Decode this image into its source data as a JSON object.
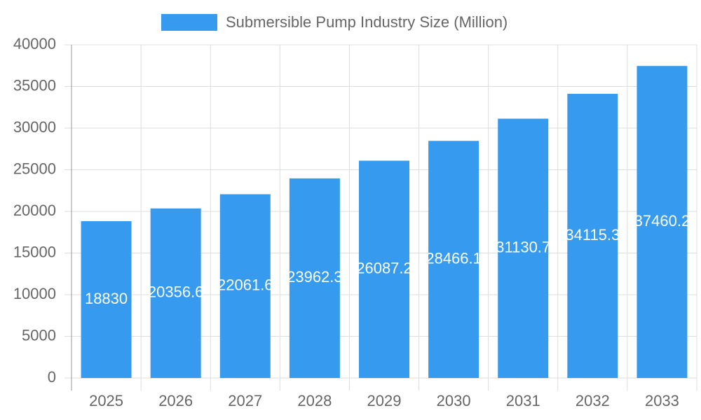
{
  "chart_data": {
    "type": "bar",
    "series": [
      {
        "name": "Submersible Pump Industry Size (Million)",
        "color": "#369bef",
        "values": [
          18830,
          20356.6,
          22061.6,
          23962.3,
          26087.2,
          28466.1,
          31130.7,
          34115.3,
          37460.2
        ]
      }
    ],
    "categories": [
      "2025",
      "2026",
      "2027",
      "2028",
      "2029",
      "2030",
      "2031",
      "2032",
      "2033"
    ],
    "ylim": [
      0,
      40000
    ],
    "yticks": [
      0,
      5000,
      10000,
      15000,
      20000,
      25000,
      30000,
      35000,
      40000
    ],
    "grid": true,
    "legend": "top"
  }
}
